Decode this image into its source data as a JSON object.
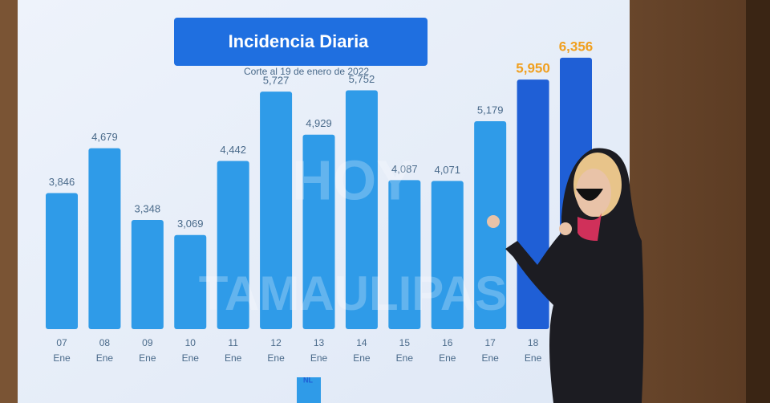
{
  "chart_data": {
    "type": "bar",
    "title": "Incidencia Diaria",
    "subtitle": "Corte al 19 de enero de 2022",
    "categories": [
      "07",
      "08",
      "09",
      "10",
      "11",
      "12",
      "13",
      "14",
      "15",
      "16",
      "17",
      "18",
      null
    ],
    "month": "Ene",
    "values": [
      3846,
      4679,
      3348,
      3069,
      4442,
      5727,
      4929,
      5752,
      4087,
      4071,
      5179,
      5950,
      6356
    ],
    "value_labels": [
      "3,846",
      "4,679",
      "3,348",
      "3,069",
      "4,442",
      "5,727",
      "4,929",
      "5,752",
      "4,087",
      "4,071",
      "5,179",
      "5,950",
      "6,356"
    ],
    "colors": [
      "#2f9be8",
      "#2f9be8",
      "#2f9be8",
      "#2f9be8",
      "#2f9be8",
      "#2f9be8",
      "#2f9be8",
      "#2f9be8",
      "#2f9be8",
      "#2f9be8",
      "#2f9be8",
      "#1f5fd6",
      "#1f5fd6"
    ],
    "label_colors": [
      "#4a6a8a",
      "#4a6a8a",
      "#4a6a8a",
      "#4a6a8a",
      "#4a6a8a",
      "#4a6a8a",
      "#4a6a8a",
      "#4a6a8a",
      "#4a6a8a",
      "#4a6a8a",
      "#4a6a8a",
      "#f0a020",
      "#f0a020"
    ],
    "watermark": [
      "HOY",
      "TAMAULIPAS"
    ],
    "logo": "NL"
  }
}
